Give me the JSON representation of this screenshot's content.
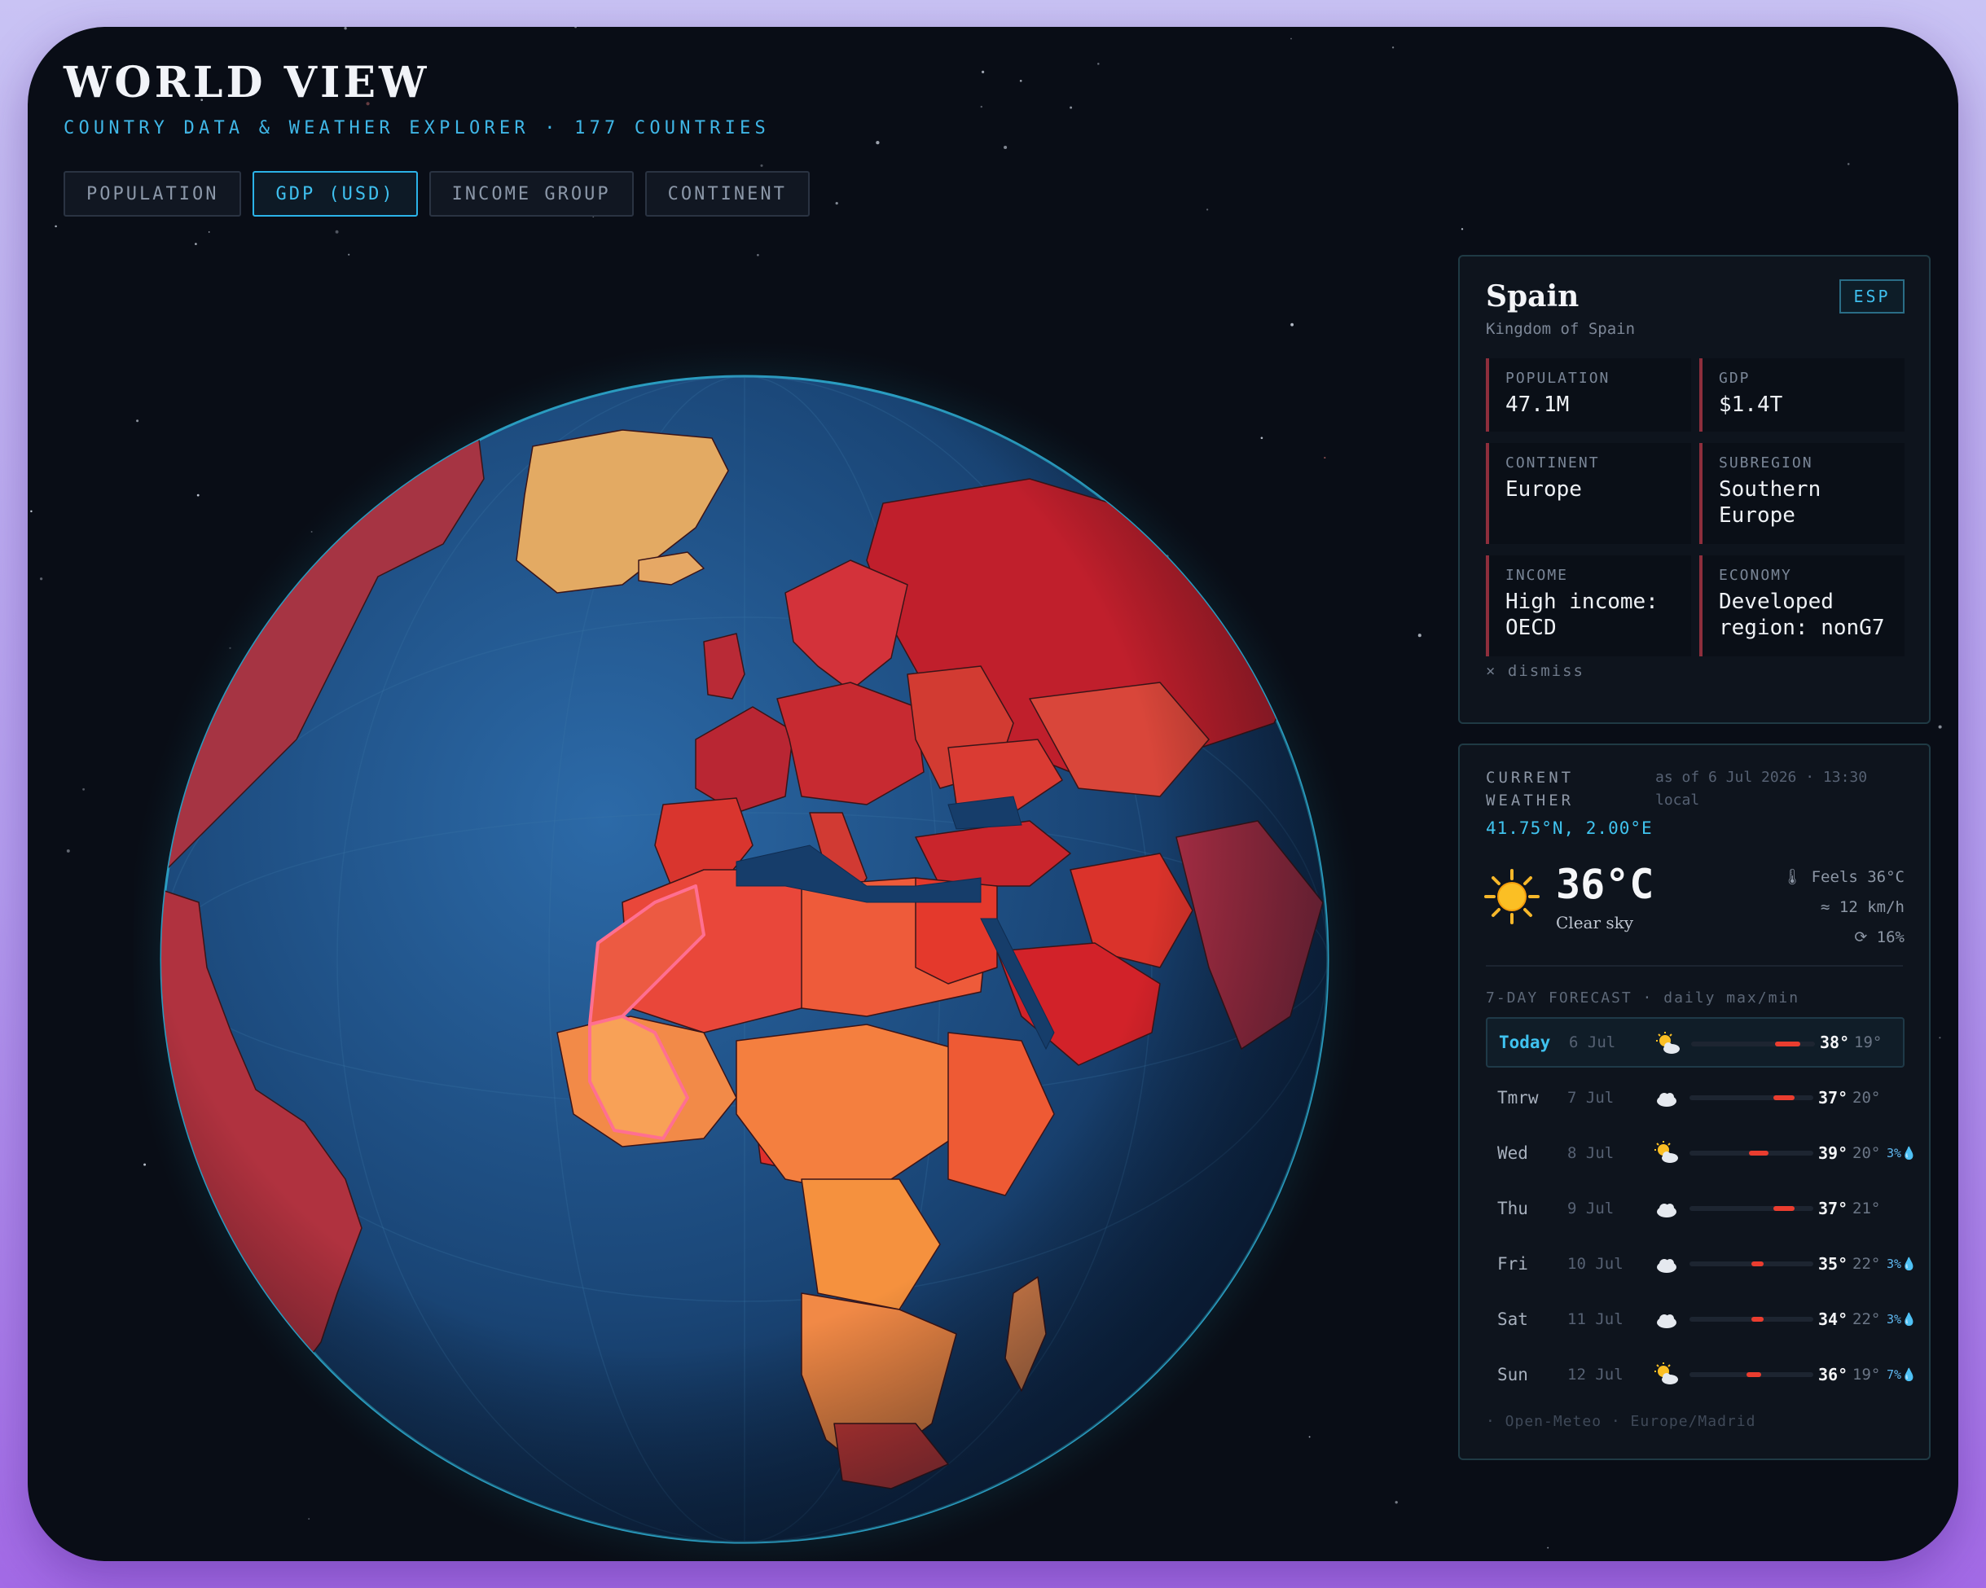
{
  "header": {
    "title": "WORLD VIEW",
    "subtitle": "COUNTRY DATA & WEATHER EXPLORER · 177 COUNTRIES"
  },
  "tabs": [
    {
      "label": "POPULATION",
      "active": false
    },
    {
      "label": "GDP (USD)",
      "active": true
    },
    {
      "label": "INCOME GROUP",
      "active": false
    },
    {
      "label": "CONTINENT",
      "active": false
    }
  ],
  "colors": {
    "accent": "#3fc0ef",
    "ocean": "#1d4f82",
    "highlight": "#ff6f91"
  },
  "country": {
    "name": "Spain",
    "official_name": "Kingdom of Spain",
    "code": "ESP",
    "stats": [
      {
        "label": "POPULATION",
        "value": "47.1M"
      },
      {
        "label": "GDP",
        "value": "$1.4T"
      },
      {
        "label": "CONTINENT",
        "value": "Europe"
      },
      {
        "label": "SUBREGION",
        "value": "Southern Europe"
      },
      {
        "label": "INCOME",
        "value": "High income: OECD"
      },
      {
        "label": "ECONOMY",
        "value": "Developed region: nonG7"
      }
    ],
    "dismiss_label": "× dismiss"
  },
  "weather": {
    "label": "CURRENT WEATHER",
    "as_of": "as of 6 Jul 2026 · 13:30 local",
    "coords": "41.75°N, 2.00°E",
    "icon": "sun-icon",
    "temperature": "36°C",
    "condition": "Clear sky",
    "feels_like": "🌡 Feels 36°C",
    "wind": "≈ 12 km/h",
    "humidity": "⟳ 16%",
    "forecast_title": "7-DAY FORECAST · daily max/min",
    "forecast": [
      {
        "day": "Today",
        "date": "6 Jul",
        "icon": "sun-cloud-icon",
        "max": "38°",
        "min": "19°",
        "precip": "",
        "bar": [
          0.68,
          0.88
        ]
      },
      {
        "day": "Tmrw",
        "date": "7 Jul",
        "icon": "cloud-icon",
        "max": "37°",
        "min": "20°",
        "precip": "",
        "bar": [
          0.68,
          0.85
        ]
      },
      {
        "day": "Wed",
        "date": "8 Jul",
        "icon": "sun-cloud-icon",
        "max": "39°",
        "min": "20°",
        "precip": "3%💧",
        "bar": [
          0.48,
          0.64
        ]
      },
      {
        "day": "Thu",
        "date": "9 Jul",
        "icon": "cloud-icon",
        "max": "37°",
        "min": "21°",
        "precip": "",
        "bar": [
          0.68,
          0.85
        ]
      },
      {
        "day": "Fri",
        "date": "10 Jul",
        "icon": "cloud-icon",
        "max": "35°",
        "min": "22°",
        "precip": "3%💧",
        "bar": [
          0.5,
          0.6
        ]
      },
      {
        "day": "Sat",
        "date": "11 Jul",
        "icon": "cloud-icon",
        "max": "34°",
        "min": "22°",
        "precip": "3%💧",
        "bar": [
          0.5,
          0.6
        ]
      },
      {
        "day": "Sun",
        "date": "12 Jul",
        "icon": "sun-cloud-icon",
        "max": "36°",
        "min": "19°",
        "precip": "7%💧",
        "bar": [
          0.46,
          0.58
        ]
      }
    ],
    "source": "· Open-Meteo · Europe/Madrid"
  }
}
